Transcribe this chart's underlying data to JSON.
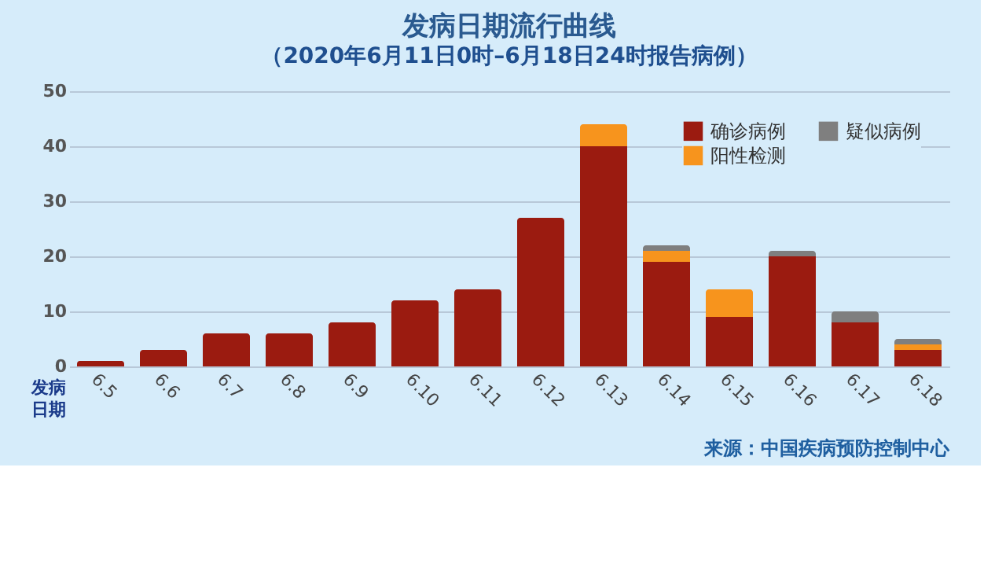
{
  "chart_data": {
    "type": "bar",
    "title": "发病日期流行曲线",
    "subtitle": "（2020年6月11日0时–6月18日24时报告病例）",
    "xlabel": "发病日期",
    "stacked": true,
    "categories": [
      "6.5",
      "6.6",
      "6.7",
      "6.8",
      "6.9",
      "6.10",
      "6.11",
      "6.12",
      "6.13",
      "6.14",
      "6.15",
      "6.16",
      "6.17",
      "6.18"
    ],
    "series": [
      {
        "name": "确诊病例",
        "color": "#9b1b10",
        "values": [
          1,
          3,
          6,
          6,
          8,
          12,
          14,
          27,
          40,
          19,
          9,
          20,
          8,
          3
        ]
      },
      {
        "name": "阳性检测",
        "color": "#f7941d",
        "values": [
          null,
          null,
          null,
          null,
          null,
          null,
          null,
          null,
          4,
          2,
          5,
          null,
          null,
          1
        ]
      },
      {
        "name": "疑似病例",
        "color": "#7f7f7f",
        "values": [
          null,
          null,
          null,
          null,
          null,
          null,
          null,
          null,
          null,
          1,
          null,
          1,
          2,
          1
        ]
      }
    ],
    "ylim": [
      0,
      50
    ],
    "yticks": [
      0,
      10,
      20,
      30,
      40,
      50
    ],
    "grid": "y",
    "legend": "top right",
    "annotations": [
      "来源：中国疾病预防控制中心"
    ]
  }
}
